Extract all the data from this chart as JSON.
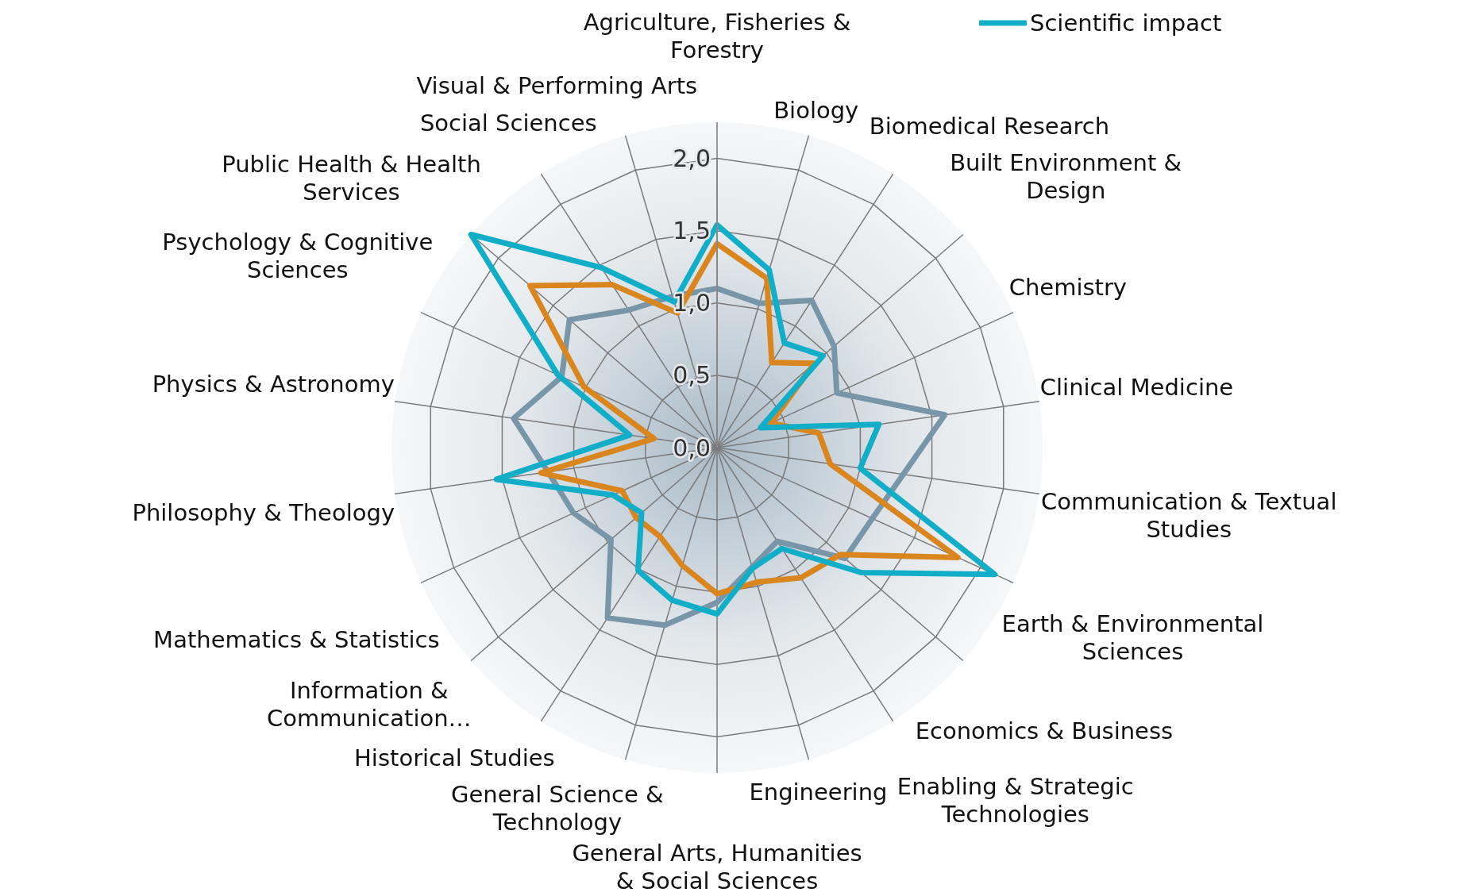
{
  "chart_data": {
    "type": "radar",
    "categories": [
      "Agriculture, Fisheries & Forestry",
      "Biology",
      "Biomedical Research",
      "Built Environment & Design",
      "Chemistry",
      "Clinical Medicine",
      "Communication & Textual Studies",
      "Earth & Environmental Sciences",
      "Economics & Business",
      "Enabling & Strategic Technologies",
      "Engineering",
      "General Arts, Humanities & Social Sciences",
      "General Science & Technology",
      "Historical Studies",
      "Information & Communication…",
      "Mathematics & Statistics",
      "Philosophy & Theology",
      "Physics & Astronomy",
      "Psychology & Cognitive Sciences",
      "Public Health & Health Services",
      "Social Sciences",
      "Visual & Performing Arts"
    ],
    "series": [
      {
        "color": "#7896a8",
        "values": [
          1.1,
          1.04,
          1.21,
          1.07,
          0.91,
          1.59,
          1.3,
          1.18,
          1.17,
          0.77,
          0.86,
          1.07,
          1.28,
          1.4,
          0.97,
          1.09,
          1.18,
          1.42,
          1.18,
          1.35,
          1.13,
          1.09
        ]
      },
      {
        "color": "#d9861e",
        "values": [
          1.41,
          1.22,
          0.7,
          0.89,
          0.41,
          0.71,
          0.79,
          1.83,
          1.13,
          1.07,
          0.97,
          1.01,
          0.85,
          0.73,
          0.74,
          0.72,
          1.23,
          0.44,
          1.01,
          1.71,
          1.34,
          0.97
        ]
      },
      {
        "name": "Scientific impact",
        "color": "#12aec8",
        "values": [
          1.54,
          1.28,
          0.86,
          0.97,
          0.33,
          1.13,
          1.0,
          2.11,
          1.32,
          0.83,
          0.87,
          1.15,
          1.1,
          1.01,
          0.69,
          0.79,
          1.54,
          0.61,
          1.21,
          2.25,
          1.48,
          1.05
        ]
      }
    ],
    "ylim": [
      0,
      2.25
    ],
    "yticks": [
      {
        "value": 0,
        "label": "0,0"
      },
      {
        "value": 0.5,
        "label": "0,5"
      },
      {
        "value": 1,
        "label": "1,0"
      },
      {
        "value": 1.5,
        "label": "1,5"
      },
      {
        "value": 2,
        "label": "2,0"
      }
    ],
    "grid": true,
    "legend": "top right",
    "line_style": "solid"
  }
}
